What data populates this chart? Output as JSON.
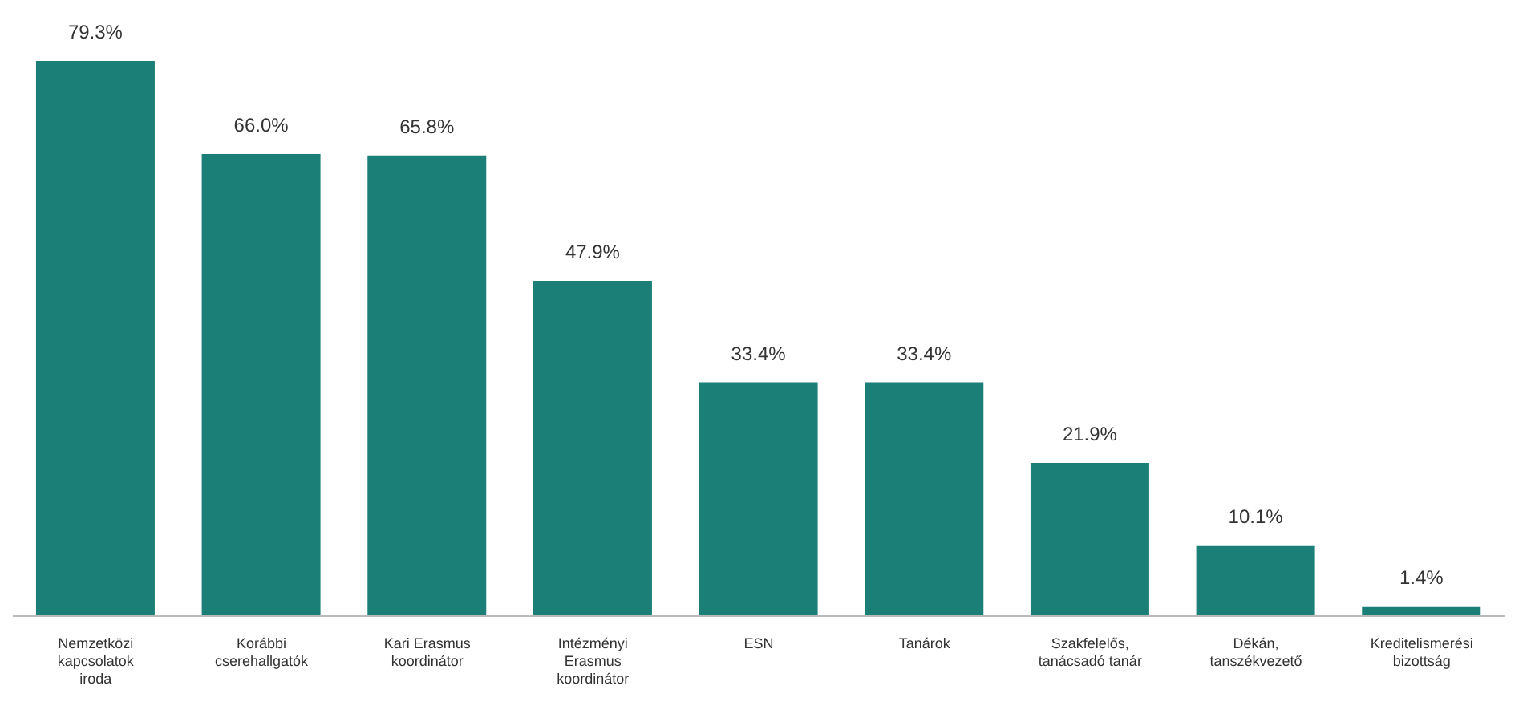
{
  "chart_data": {
    "type": "bar",
    "categories": [
      "Nemzetközi kapcsolatok iroda",
      "Korábbi cserehallgatók",
      "Kari Erasmus koordinátor",
      "Intézményi Erasmus koordinátor",
      "ESN",
      "Tanárok",
      "Szakfelelős, tanácsadó tanár",
      "Dékán, tanszékvezető",
      "Kreditelismerési bizottság"
    ],
    "values": [
      79.3,
      66.0,
      65.8,
      47.9,
      33.4,
      33.4,
      21.9,
      10.1,
      1.4
    ],
    "value_labels": [
      "79.3%",
      "66.0%",
      "65.8%",
      "47.9%",
      "33.4%",
      "33.4%",
      "21.9%",
      "10.1%",
      "1.4%"
    ],
    "color": "#1b7f78",
    "grid": false,
    "legend": false
  }
}
